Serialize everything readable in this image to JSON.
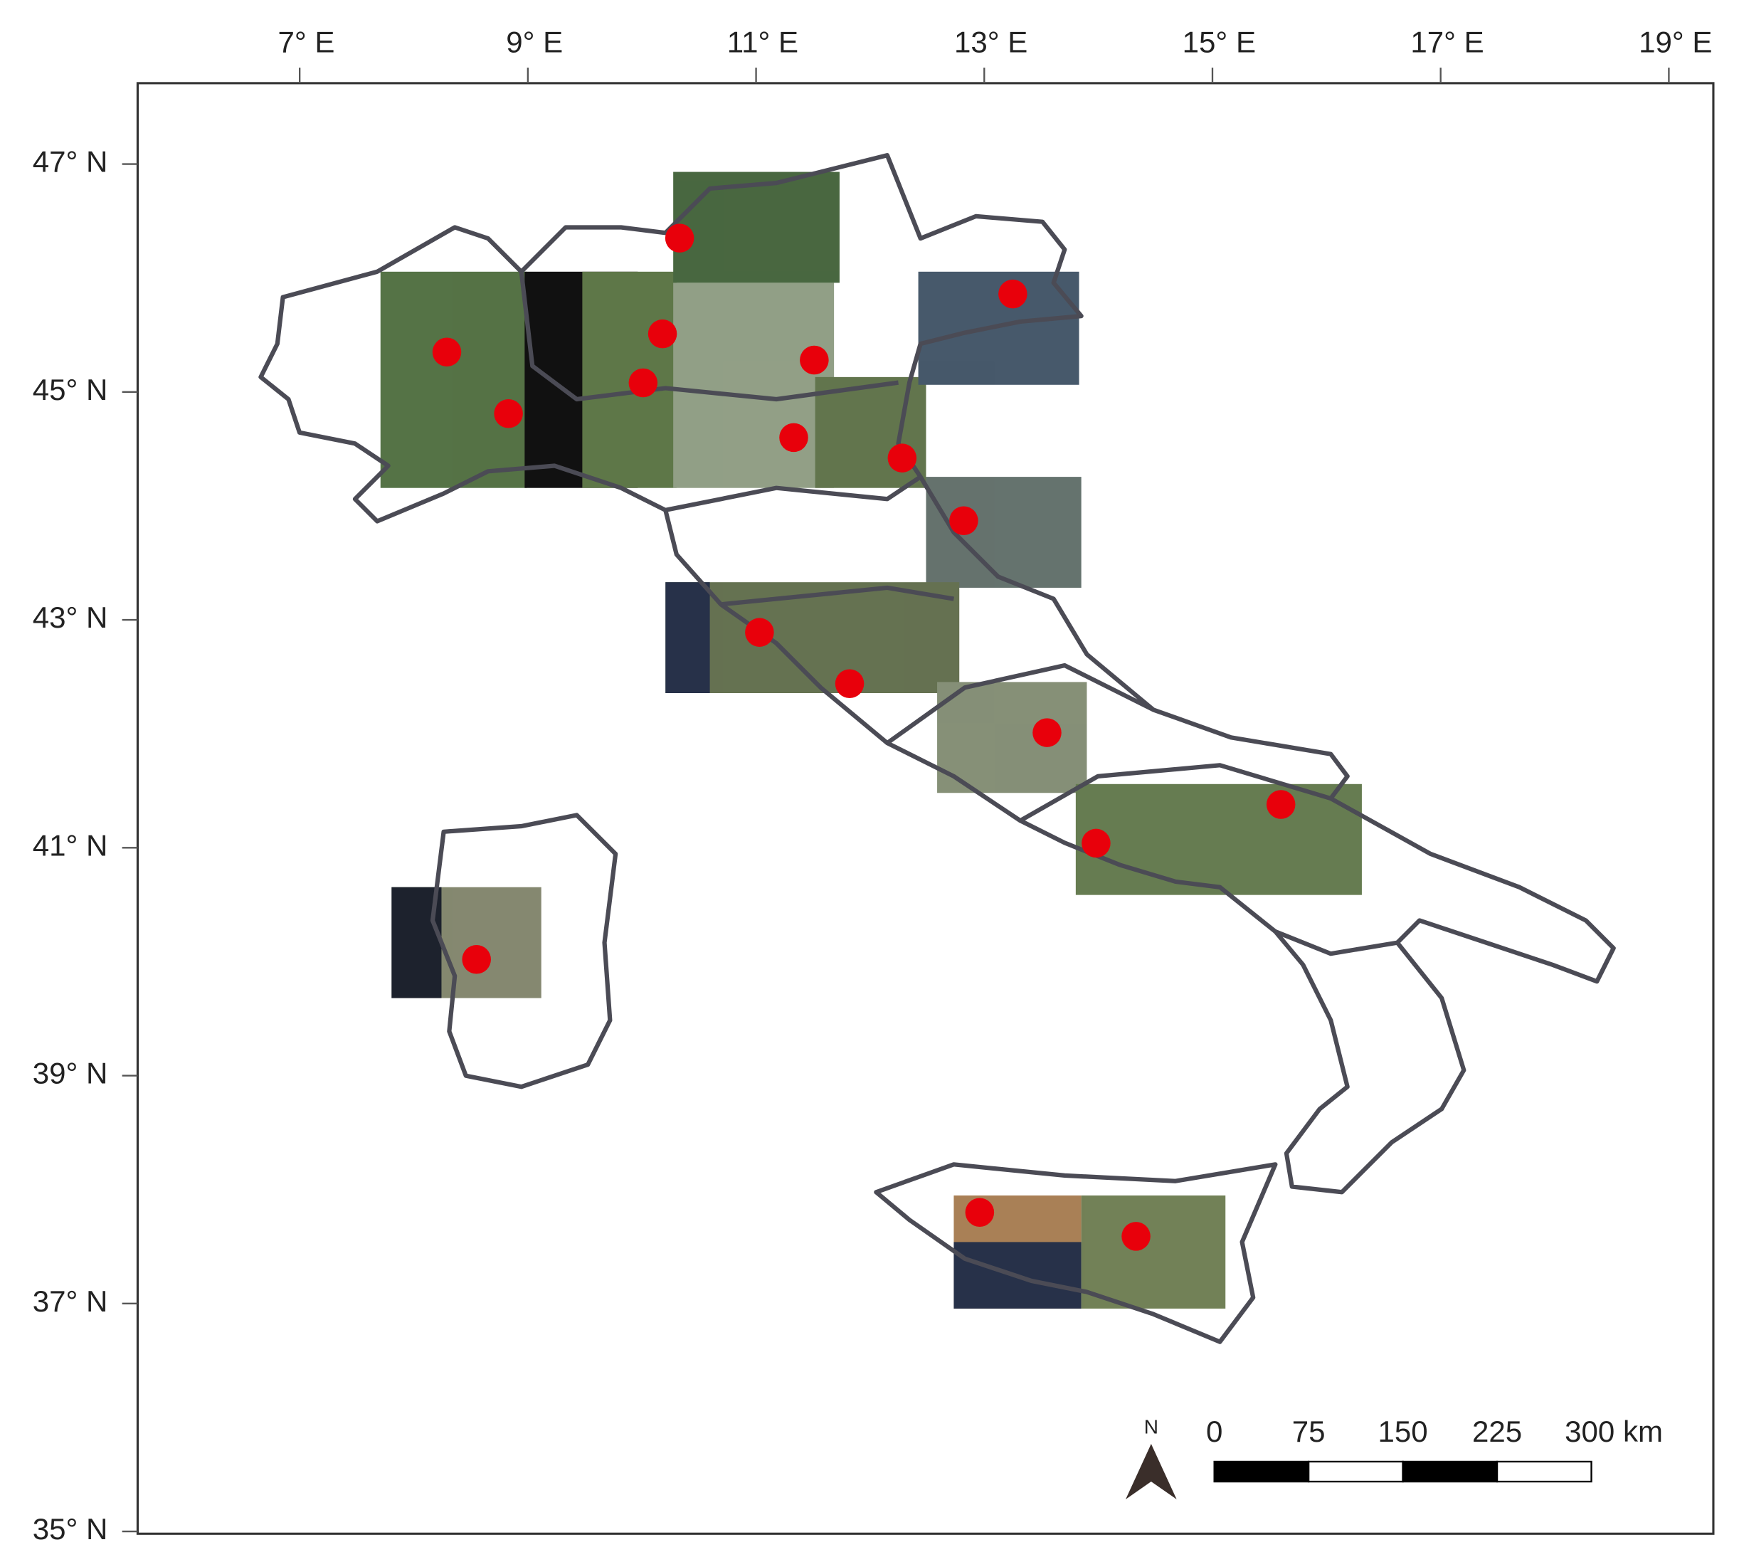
{
  "map": {
    "xlim": [
      5.58,
      19.39
    ],
    "ylim": [
      34.98,
      47.71
    ],
    "xticks": [
      {
        "value": 7,
        "label": "7° E"
      },
      {
        "value": 9,
        "label": "9° E"
      },
      {
        "value": 11,
        "label": "11° E"
      },
      {
        "value": 13,
        "label": "13° E"
      },
      {
        "value": 15,
        "label": "15° E"
      },
      {
        "value": 17,
        "label": "17° E"
      },
      {
        "value": 19,
        "label": "19° E"
      }
    ],
    "yticks": [
      {
        "value": 35,
        "label": "35° N"
      },
      {
        "value": 37,
        "label": "37° N"
      },
      {
        "value": 39,
        "label": "39° N"
      },
      {
        "value": 41,
        "label": "41° N"
      },
      {
        "value": 43,
        "label": "43° N"
      },
      {
        "value": 45,
        "label": "45° N"
      },
      {
        "value": 47,
        "label": "47° N"
      }
    ],
    "points": {
      "color": "#e8000b",
      "lon": [
        10.33,
        8.29,
        8.83,
        10.18,
        10.01,
        11.51,
        11.33,
        12.28,
        13.25,
        12.82,
        11.03,
        11.82,
        13.55,
        15.6,
        13.98,
        8.55,
        12.96,
        14.33
      ],
      "lat": [
        46.35,
        45.35,
        44.81,
        45.51,
        45.08,
        45.28,
        44.6,
        44.42,
        45.86,
        43.87,
        42.89,
        42.44,
        42.01,
        41.38,
        41.04,
        40.02,
        37.8,
        37.59
      ]
    },
    "scale_bar": {
      "ticks": [
        0,
        75,
        150,
        225,
        {
          "value": 300,
          "label": "300 km"
        }
      ]
    },
    "north_label": "N"
  }
}
